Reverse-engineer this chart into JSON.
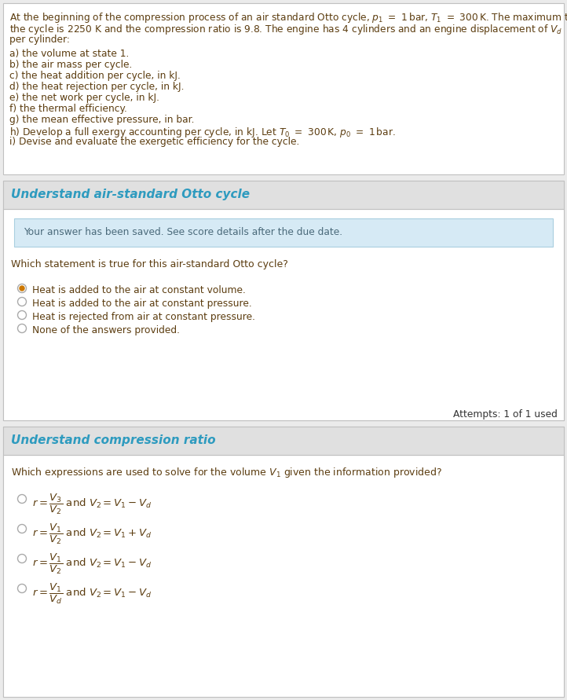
{
  "bg_color": "#ebebeb",
  "white": "#ffffff",
  "light_blue_box": "#d6eaf5",
  "section_header_bg": "#e0e0e0",
  "section_header_color": "#2e9bbf",
  "text_color_dark": "#5c3d10",
  "text_color_gray": "#4a6a7a",
  "border_color": "#c0c0c0",
  "radio_color": "#aaaaaa",
  "attempts_color": "#333333",
  "section1_title": "Understand air-standard Otto cycle",
  "saved_box_text": "Your answer has been saved. See score details after the due date.",
  "question1": "Which statement is true for this air-standard Otto cycle?",
  "options1": [
    "Heat is added to the air at constant volume.",
    "Heat is added to the air at constant pressure.",
    "Heat is rejected from air at constant pressure.",
    "None of the answers provided."
  ],
  "option1_selected": 0,
  "attempts_text": "Attempts: 1 of 1 used",
  "section2_title": "Understand compression ratio"
}
